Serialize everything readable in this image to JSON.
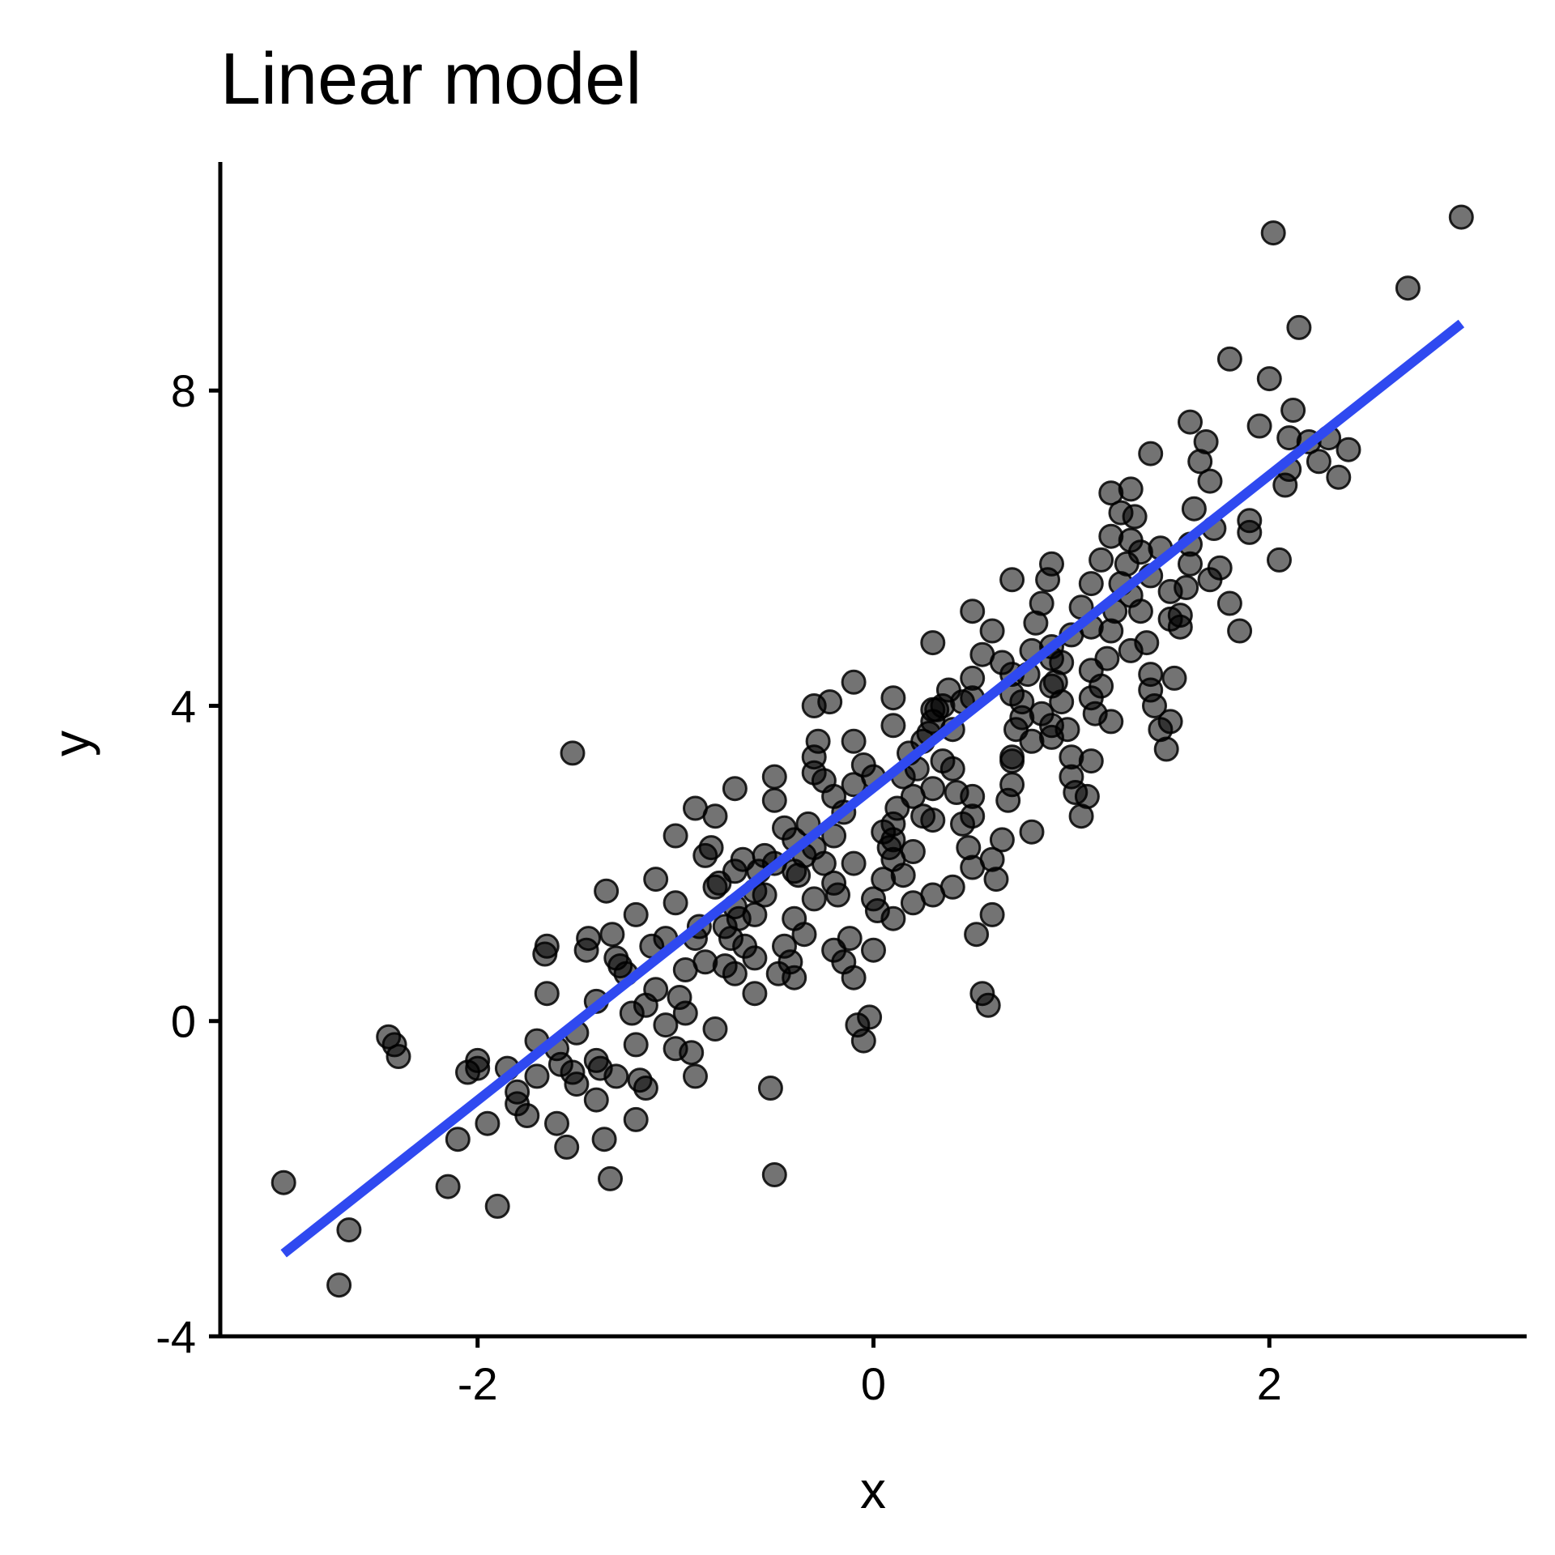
{
  "chart_data": {
    "type": "scatter",
    "title": "Linear model",
    "xlabel": "x",
    "ylabel": "y",
    "xlim": [
      -3.3,
      3.3
    ],
    "ylim": [
      -4.0,
      10.9
    ],
    "x_ticks": [
      -2,
      0,
      2
    ],
    "x_tick_labels": [
      "-2",
      "0",
      "2"
    ],
    "y_ticks": [
      -4,
      0,
      4,
      8
    ],
    "y_tick_labels": [
      "-4",
      "0",
      "4",
      "8"
    ],
    "grid": false,
    "legend": "none",
    "colors": {
      "points": "#000000",
      "fit_line": "#2f49f0"
    },
    "fit_line": {
      "x": [
        -2.98,
        2.97
      ],
      "y": [
        -2.95,
        8.85
      ]
    },
    "points": [
      [
        -2.98,
        -2.05
      ],
      [
        -2.7,
        -3.35
      ],
      [
        -2.65,
        -2.65
      ],
      [
        -2.45,
        -0.2
      ],
      [
        -2.42,
        -0.3
      ],
      [
        -2.4,
        -0.45
      ],
      [
        -2.15,
        -2.1
      ],
      [
        -2.1,
        -1.5
      ],
      [
        -2.05,
        -0.65
      ],
      [
        -2.0,
        -0.6
      ],
      [
        -1.95,
        -1.3
      ],
      [
        -1.9,
        -2.35
      ],
      [
        -1.85,
        -0.6
      ],
      [
        -1.8,
        -0.9
      ],
      [
        -1.75,
        -1.2
      ],
      [
        -1.7,
        -0.25
      ],
      [
        -1.65,
        0.35
      ],
      [
        -1.66,
        0.85
      ],
      [
        -1.65,
        0.95
      ],
      [
        -1.6,
        -1.3
      ],
      [
        -1.55,
        -1.6
      ],
      [
        -1.58,
        -0.55
      ],
      [
        -1.52,
        -0.65
      ],
      [
        -1.52,
        3.4
      ],
      [
        -1.5,
        -0.15
      ],
      [
        -1.45,
        0.9
      ],
      [
        -1.44,
        1.05
      ],
      [
        -1.4,
        -0.5
      ],
      [
        -1.38,
        -0.6
      ],
      [
        -1.36,
        -1.5
      ],
      [
        -1.33,
        -2.0
      ],
      [
        -1.35,
        1.65
      ],
      [
        -1.32,
        1.1
      ],
      [
        -1.3,
        0.8
      ],
      [
        -1.28,
        0.7
      ],
      [
        -1.25,
        0.6
      ],
      [
        -1.22,
        0.1
      ],
      [
        -1.2,
        -0.3
      ],
      [
        -1.18,
        -0.75
      ],
      [
        -1.15,
        -0.85
      ],
      [
        -1.12,
        0.95
      ],
      [
        -1.1,
        1.8
      ],
      [
        -1.05,
        1.05
      ],
      [
        -1.0,
        2.35
      ],
      [
        -0.98,
        0.3
      ],
      [
        -0.95,
        0.1
      ],
      [
        -0.92,
        -0.4
      ],
      [
        -0.9,
        -0.7
      ],
      [
        -0.88,
        1.2
      ],
      [
        -0.85,
        2.1
      ],
      [
        -0.82,
        2.2
      ],
      [
        -0.8,
        2.6
      ],
      [
        -0.78,
        1.75
      ],
      [
        -0.75,
        1.2
      ],
      [
        -0.72,
        1.05
      ],
      [
        -0.7,
        1.45
      ],
      [
        -0.68,
        1.3
      ],
      [
        -0.66,
        2.05
      ],
      [
        -0.6,
        1.35
      ],
      [
        -0.58,
        1.9
      ],
      [
        -0.55,
        2.1
      ],
      [
        -0.52,
        -0.85
      ],
      [
        -0.5,
        -1.95
      ],
      [
        -0.48,
        0.6
      ],
      [
        -0.45,
        0.95
      ],
      [
        -0.42,
        0.75
      ],
      [
        -0.4,
        2.3
      ],
      [
        -0.38,
        1.85
      ],
      [
        -0.35,
        2.1
      ],
      [
        -0.33,
        2.5
      ],
      [
        -0.3,
        3.15
      ],
      [
        -0.28,
        3.55
      ],
      [
        -0.25,
        3.05
      ],
      [
        -0.22,
        4.05
      ],
      [
        -0.2,
        2.85
      ],
      [
        -0.18,
        1.6
      ],
      [
        -0.15,
        0.75
      ],
      [
        -0.12,
        1.05
      ],
      [
        -0.1,
        0.55
      ],
      [
        -0.08,
        -0.05
      ],
      [
        -0.05,
        -0.25
      ],
      [
        -0.02,
        0.05
      ],
      [
        0.0,
        0.9
      ],
      [
        0.02,
        1.4
      ],
      [
        0.05,
        1.8
      ],
      [
        0.08,
        2.2
      ],
      [
        0.1,
        2.5
      ],
      [
        0.12,
        2.7
      ],
      [
        0.15,
        3.1
      ],
      [
        0.18,
        3.4
      ],
      [
        0.2,
        2.85
      ],
      [
        0.22,
        3.2
      ],
      [
        0.25,
        3.55
      ],
      [
        0.28,
        3.65
      ],
      [
        0.3,
        3.8
      ],
      [
        0.32,
        3.95
      ],
      [
        0.35,
        4.0
      ],
      [
        0.38,
        4.2
      ],
      [
        0.4,
        3.2
      ],
      [
        0.42,
        2.9
      ],
      [
        0.45,
        2.5
      ],
      [
        0.48,
        2.2
      ],
      [
        0.5,
        1.95
      ],
      [
        0.52,
        1.1
      ],
      [
        0.55,
        0.35
      ],
      [
        0.58,
        0.2
      ],
      [
        0.6,
        1.35
      ],
      [
        0.62,
        1.8
      ],
      [
        0.65,
        2.3
      ],
      [
        0.68,
        2.8
      ],
      [
        0.7,
        3.3
      ],
      [
        0.72,
        3.7
      ],
      [
        0.75,
        4.05
      ],
      [
        0.78,
        4.4
      ],
      [
        0.8,
        4.7
      ],
      [
        0.82,
        5.05
      ],
      [
        0.85,
        5.3
      ],
      [
        0.88,
        5.6
      ],
      [
        0.9,
        4.6
      ],
      [
        0.92,
        4.3
      ],
      [
        0.95,
        4.05
      ],
      [
        0.98,
        3.7
      ],
      [
        1.0,
        3.1
      ],
      [
        1.02,
        2.9
      ],
      [
        1.05,
        2.6
      ],
      [
        1.08,
        2.85
      ],
      [
        1.1,
        3.3
      ],
      [
        1.12,
        3.9
      ],
      [
        1.15,
        4.25
      ],
      [
        1.18,
        4.6
      ],
      [
        1.2,
        4.95
      ],
      [
        1.22,
        5.2
      ],
      [
        1.25,
        5.55
      ],
      [
        1.28,
        5.8
      ],
      [
        1.3,
        6.1
      ],
      [
        1.32,
        6.4
      ],
      [
        1.35,
        5.2
      ],
      [
        1.38,
        4.8
      ],
      [
        1.4,
        4.4
      ],
      [
        1.42,
        4.0
      ],
      [
        1.45,
        3.7
      ],
      [
        1.48,
        3.45
      ],
      [
        1.5,
        3.8
      ],
      [
        1.52,
        4.35
      ],
      [
        1.55,
        5.0
      ],
      [
        1.58,
        5.5
      ],
      [
        1.6,
        6.05
      ],
      [
        1.62,
        6.5
      ],
      [
        1.65,
        7.1
      ],
      [
        1.68,
        7.35
      ],
      [
        1.7,
        6.85
      ],
      [
        1.72,
        6.25
      ],
      [
        1.75,
        5.75
      ],
      [
        1.8,
        5.3
      ],
      [
        1.85,
        4.95
      ],
      [
        1.9,
        6.35
      ],
      [
        1.95,
        7.55
      ],
      [
        2.0,
        8.15
      ],
      [
        2.02,
        10.0
      ],
      [
        2.05,
        5.85
      ],
      [
        2.08,
        6.8
      ],
      [
        2.1,
        7.4
      ],
      [
        2.12,
        7.75
      ],
      [
        2.15,
        8.8
      ],
      [
        2.2,
        7.35
      ],
      [
        2.25,
        7.1
      ],
      [
        2.3,
        7.4
      ],
      [
        2.35,
        6.9
      ],
      [
        2.4,
        7.25
      ],
      [
        2.7,
        9.3
      ],
      [
        2.97,
        10.2
      ],
      [
        -1.4,
        0.25
      ],
      [
        -1.3,
        -0.7
      ],
      [
        -1.15,
        0.2
      ],
      [
        -1.1,
        0.4
      ],
      [
        -1.05,
        -0.05
      ],
      [
        -0.95,
        0.65
      ],
      [
        -0.9,
        1.05
      ],
      [
        -0.85,
        0.75
      ],
      [
        -0.75,
        0.7
      ],
      [
        -0.7,
        0.6
      ],
      [
        -0.65,
        0.95
      ],
      [
        -0.6,
        0.8
      ],
      [
        -0.55,
        1.6
      ],
      [
        -0.5,
        2.8
      ],
      [
        -0.45,
        2.45
      ],
      [
        -0.4,
        1.3
      ],
      [
        -0.35,
        1.1
      ],
      [
        -0.3,
        1.55
      ],
      [
        -0.25,
        2.0
      ],
      [
        -0.2,
        2.35
      ],
      [
        -0.15,
        2.65
      ],
      [
        -0.1,
        3.0
      ],
      [
        -0.05,
        3.25
      ],
      [
        0.0,
        3.1
      ],
      [
        0.05,
        2.4
      ],
      [
        0.1,
        2.05
      ],
      [
        0.15,
        1.85
      ],
      [
        0.2,
        2.15
      ],
      [
        0.25,
        2.6
      ],
      [
        0.3,
        2.95
      ],
      [
        0.35,
        3.3
      ],
      [
        0.4,
        3.7
      ],
      [
        0.45,
        4.05
      ],
      [
        0.5,
        4.35
      ],
      [
        0.55,
        4.65
      ],
      [
        0.6,
        4.95
      ],
      [
        0.65,
        4.55
      ],
      [
        0.7,
        4.15
      ],
      [
        0.75,
        3.85
      ],
      [
        0.8,
        3.55
      ],
      [
        0.85,
        3.9
      ],
      [
        0.9,
        4.25
      ],
      [
        0.95,
        4.55
      ],
      [
        1.0,
        4.9
      ],
      [
        1.05,
        5.25
      ],
      [
        1.1,
        5.55
      ],
      [
        1.15,
        5.85
      ],
      [
        1.2,
        6.15
      ],
      [
        1.25,
        6.45
      ],
      [
        1.3,
        6.75
      ],
      [
        1.35,
        5.95
      ],
      [
        1.4,
        5.65
      ],
      [
        1.45,
        6.0
      ],
      [
        1.5,
        5.45
      ],
      [
        1.55,
        5.15
      ],
      [
        1.6,
        5.8
      ],
      [
        -2.0,
        -0.5
      ],
      [
        -1.8,
        -1.05
      ],
      [
        -1.7,
        -0.7
      ],
      [
        -1.6,
        -0.35
      ],
      [
        -1.5,
        -0.8
      ],
      [
        -1.4,
        -1.0
      ],
      [
        -1.2,
        -1.25
      ],
      [
        -1.0,
        -0.35
      ],
      [
        -0.8,
        -0.1
      ],
      [
        -0.6,
        0.35
      ],
      [
        -0.4,
        0.55
      ],
      [
        -0.2,
        0.9
      ],
      [
        0.1,
        1.3
      ],
      [
        0.3,
        1.6
      ],
      [
        0.5,
        2.6
      ],
      [
        0.7,
        3.0
      ],
      [
        0.9,
        3.6
      ],
      [
        1.1,
        4.1
      ],
      [
        1.3,
        4.7
      ],
      [
        1.5,
        5.1
      ],
      [
        1.7,
        5.6
      ],
      [
        1.9,
        6.2
      ],
      [
        -0.3,
        4.0
      ],
      [
        -0.1,
        4.3
      ],
      [
        0.1,
        4.1
      ],
      [
        0.3,
        4.8
      ],
      [
        0.5,
        5.2
      ],
      [
        0.7,
        5.6
      ],
      [
        0.9,
        5.8
      ],
      [
        1.2,
        6.7
      ],
      [
        1.4,
        7.2
      ],
      [
        1.6,
        7.6
      ],
      [
        1.8,
        8.4
      ],
      [
        2.1,
        7.0
      ],
      [
        -0.7,
        1.9
      ],
      [
        -0.5,
        2.0
      ],
      [
        -0.3,
        2.2
      ],
      [
        -0.1,
        2.0
      ],
      [
        0.1,
        2.3
      ],
      [
        0.3,
        2.55
      ],
      [
        0.5,
        2.85
      ],
      [
        0.7,
        3.35
      ],
      [
        0.9,
        3.75
      ],
      [
        1.1,
        4.45
      ],
      [
        -1.2,
        1.35
      ],
      [
        -1.0,
        1.5
      ],
      [
        -0.8,
        1.7
      ],
      [
        -0.6,
        1.65
      ],
      [
        -0.4,
        1.9
      ],
      [
        -0.2,
        1.75
      ],
      [
        0.0,
        1.55
      ],
      [
        0.2,
        1.5
      ],
      [
        0.4,
        1.7
      ],
      [
        0.6,
        2.05
      ],
      [
        0.8,
        2.4
      ],
      [
        1.0,
        3.35
      ],
      [
        1.2,
        3.8
      ],
      [
        1.4,
        4.2
      ],
      [
        -0.9,
        2.7
      ],
      [
        -0.7,
        2.95
      ],
      [
        -0.5,
        3.1
      ],
      [
        -0.3,
        3.35
      ],
      [
        -0.1,
        3.55
      ],
      [
        0.1,
        3.75
      ],
      [
        0.3,
        3.95
      ],
      [
        0.5,
        4.1
      ],
      [
        0.7,
        4.4
      ],
      [
        0.9,
        4.75
      ],
      [
        1.1,
        5.0
      ],
      [
        1.3,
        5.4
      ]
    ]
  }
}
